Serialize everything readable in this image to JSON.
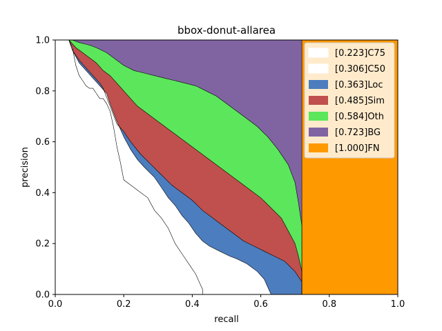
{
  "chart_data": {
    "type": "area",
    "title": "bbox-donut-allarea",
    "xlabel": "recall",
    "ylabel": "precision",
    "xlim": [
      0,
      1
    ],
    "ylim": [
      0,
      1
    ],
    "xticks": [
      "0.0",
      "0.2",
      "0.4",
      "0.6",
      "0.8",
      "1.0"
    ],
    "yticks": [
      "0.0",
      "0.2",
      "0.4",
      "0.6",
      "0.8",
      "1.0"
    ],
    "legend_position": "top-right",
    "series": [
      {
        "name": "[0.223]C75",
        "color": "#ffffff",
        "points": [
          [
            0.04,
            1.0
          ],
          [
            0.05,
            0.97
          ],
          [
            0.06,
            0.9
          ],
          [
            0.07,
            0.86
          ],
          [
            0.08,
            0.84
          ],
          [
            0.09,
            0.82
          ],
          [
            0.1,
            0.81
          ],
          [
            0.11,
            0.81
          ],
          [
            0.12,
            0.79
          ],
          [
            0.13,
            0.77
          ],
          [
            0.14,
            0.77
          ],
          [
            0.15,
            0.75
          ],
          [
            0.16,
            0.72
          ],
          [
            0.17,
            0.66
          ],
          [
            0.18,
            0.58
          ],
          [
            0.19,
            0.52
          ],
          [
            0.2,
            0.45
          ],
          [
            0.22,
            0.43
          ],
          [
            0.24,
            0.41
          ],
          [
            0.27,
            0.38
          ],
          [
            0.29,
            0.33
          ],
          [
            0.31,
            0.3
          ],
          [
            0.33,
            0.26
          ],
          [
            0.35,
            0.2
          ],
          [
            0.37,
            0.16
          ],
          [
            0.39,
            0.12
          ],
          [
            0.41,
            0.08
          ],
          [
            0.42,
            0.05
          ],
          [
            0.43,
            0.02
          ],
          [
            0.43,
            0.0
          ]
        ]
      },
      {
        "name": "[0.306]C50",
        "color": "#ffffff",
        "points": [
          [
            0.04,
            1.0
          ],
          [
            0.05,
            0.96
          ],
          [
            0.07,
            0.91
          ],
          [
            0.09,
            0.88
          ],
          [
            0.11,
            0.85
          ],
          [
            0.13,
            0.82
          ],
          [
            0.15,
            0.79
          ],
          [
            0.16,
            0.75
          ],
          [
            0.18,
            0.68
          ],
          [
            0.2,
            0.62
          ],
          [
            0.22,
            0.57
          ],
          [
            0.24,
            0.53
          ],
          [
            0.26,
            0.5
          ],
          [
            0.29,
            0.46
          ],
          [
            0.31,
            0.42
          ],
          [
            0.33,
            0.38
          ],
          [
            0.35,
            0.35
          ],
          [
            0.37,
            0.31
          ],
          [
            0.39,
            0.28
          ],
          [
            0.41,
            0.24
          ],
          [
            0.43,
            0.21
          ],
          [
            0.45,
            0.19
          ],
          [
            0.48,
            0.17
          ],
          [
            0.51,
            0.15
          ],
          [
            0.53,
            0.14
          ],
          [
            0.56,
            0.12
          ],
          [
            0.59,
            0.09
          ],
          [
            0.61,
            0.06
          ],
          [
            0.62,
            0.03
          ],
          [
            0.63,
            0.0
          ]
        ]
      },
      {
        "name": "[0.363]Loc",
        "color": "#4c7dbe",
        "points": [
          [
            0.04,
            1.0
          ],
          [
            0.05,
            0.96
          ],
          [
            0.07,
            0.92
          ],
          [
            0.09,
            0.89
          ],
          [
            0.11,
            0.86
          ],
          [
            0.13,
            0.83
          ],
          [
            0.14,
            0.81
          ],
          [
            0.16,
            0.74
          ],
          [
            0.18,
            0.67
          ],
          [
            0.2,
            0.64
          ],
          [
            0.22,
            0.6
          ],
          [
            0.25,
            0.55
          ],
          [
            0.28,
            0.51
          ],
          [
            0.31,
            0.47
          ],
          [
            0.34,
            0.43
          ],
          [
            0.37,
            0.4
          ],
          [
            0.4,
            0.37
          ],
          [
            0.43,
            0.33
          ],
          [
            0.46,
            0.3
          ],
          [
            0.49,
            0.27
          ],
          [
            0.52,
            0.24
          ],
          [
            0.55,
            0.21
          ],
          [
            0.58,
            0.19
          ],
          [
            0.61,
            0.17
          ],
          [
            0.64,
            0.15
          ],
          [
            0.67,
            0.13
          ],
          [
            0.7,
            0.09
          ],
          [
            0.72,
            0.05
          ],
          [
            0.72,
            0.02
          ],
          [
            0.72,
            0.0
          ]
        ]
      },
      {
        "name": "[0.485]Sim",
        "color": "#c0504d",
        "points": [
          [
            0.04,
            1.0
          ],
          [
            0.06,
            0.97
          ],
          [
            0.08,
            0.95
          ],
          [
            0.1,
            0.93
          ],
          [
            0.12,
            0.91
          ],
          [
            0.14,
            0.88
          ],
          [
            0.16,
            0.86
          ],
          [
            0.18,
            0.83
          ],
          [
            0.2,
            0.8
          ],
          [
            0.22,
            0.77
          ],
          [
            0.24,
            0.74
          ],
          [
            0.27,
            0.71
          ],
          [
            0.3,
            0.68
          ],
          [
            0.33,
            0.65
          ],
          [
            0.36,
            0.62
          ],
          [
            0.39,
            0.59
          ],
          [
            0.42,
            0.56
          ],
          [
            0.45,
            0.53
          ],
          [
            0.48,
            0.5
          ],
          [
            0.51,
            0.47
          ],
          [
            0.54,
            0.44
          ],
          [
            0.57,
            0.41
          ],
          [
            0.6,
            0.38
          ],
          [
            0.63,
            0.34
          ],
          [
            0.66,
            0.3
          ],
          [
            0.68,
            0.25
          ],
          [
            0.7,
            0.2
          ],
          [
            0.71,
            0.15
          ],
          [
            0.72,
            0.09
          ],
          [
            0.72,
            0.0
          ]
        ]
      },
      {
        "name": "[0.584]Oth",
        "color": "#5ce65c",
        "points": [
          [
            0.05,
            1.0
          ],
          [
            0.07,
            0.99
          ],
          [
            0.1,
            0.98
          ],
          [
            0.12,
            0.97
          ],
          [
            0.15,
            0.95
          ],
          [
            0.18,
            0.92
          ],
          [
            0.2,
            0.9
          ],
          [
            0.23,
            0.88
          ],
          [
            0.26,
            0.87
          ],
          [
            0.29,
            0.86
          ],
          [
            0.32,
            0.85
          ],
          [
            0.35,
            0.84
          ],
          [
            0.38,
            0.83
          ],
          [
            0.41,
            0.82
          ],
          [
            0.44,
            0.8
          ],
          [
            0.47,
            0.78
          ],
          [
            0.5,
            0.75
          ],
          [
            0.53,
            0.72
          ],
          [
            0.56,
            0.69
          ],
          [
            0.59,
            0.66
          ],
          [
            0.62,
            0.62
          ],
          [
            0.65,
            0.57
          ],
          [
            0.68,
            0.51
          ],
          [
            0.7,
            0.44
          ],
          [
            0.71,
            0.36
          ],
          [
            0.72,
            0.27
          ],
          [
            0.72,
            0.18
          ],
          [
            0.72,
            0.1
          ],
          [
            0.72,
            0.04
          ],
          [
            0.72,
            0.0
          ]
        ]
      },
      {
        "name": "[0.723]BG",
        "color": "#8064a2",
        "points": [
          [
            0.05,
            1.0
          ],
          [
            0.72,
            1.0
          ],
          [
            0.72,
            0.0
          ]
        ]
      },
      {
        "name": "[1.000]FN",
        "color": "#ff9900",
        "points": [
          [
            0.72,
            1.0
          ],
          [
            1.0,
            1.0
          ],
          [
            1.0,
            0.0
          ]
        ]
      }
    ]
  }
}
